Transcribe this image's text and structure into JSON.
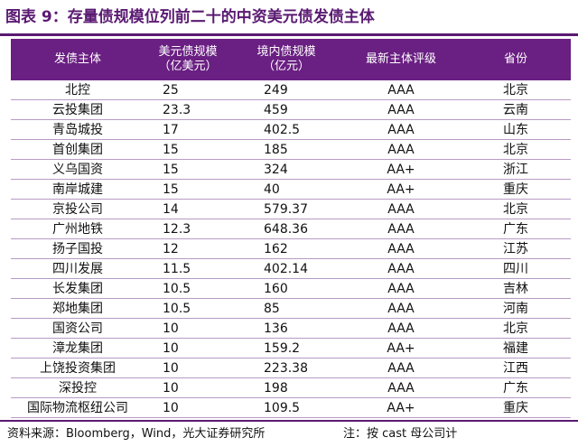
{
  "title": "图表 9：存量债规模位列前二十的中资美元债发债主体",
  "headers": {
    "issuer": "发债主体",
    "usd_line1": "美元债规模",
    "usd_line2": "（亿美元）",
    "dom_line1": "境内债规模",
    "dom_line2": "（亿元）",
    "rating": "最新主体评级",
    "province": "省份"
  },
  "rows": [
    {
      "issuer": "北控",
      "usd": "25",
      "dom": "249",
      "rating": "AAA",
      "province": "北京"
    },
    {
      "issuer": "云投集团",
      "usd": "23.3",
      "dom": "459",
      "rating": "AAA",
      "province": "云南"
    },
    {
      "issuer": "青岛城投",
      "usd": "17",
      "dom": "402.5",
      "rating": "AAA",
      "province": "山东"
    },
    {
      "issuer": "首创集团",
      "usd": "15",
      "dom": "185",
      "rating": "AAA",
      "province": "北京"
    },
    {
      "issuer": "义乌国资",
      "usd": "15",
      "dom": "324",
      "rating": "AA+",
      "province": "浙江"
    },
    {
      "issuer": "南岸城建",
      "usd": "15",
      "dom": "40",
      "rating": "AA+",
      "province": "重庆"
    },
    {
      "issuer": "京投公司",
      "usd": "14",
      "dom": "579.37",
      "rating": "AAA",
      "province": "北京"
    },
    {
      "issuer": "广州地铁",
      "usd": "12.3",
      "dom": "648.36",
      "rating": "AAA",
      "province": "广东"
    },
    {
      "issuer": "扬子国投",
      "usd": "12",
      "dom": "162",
      "rating": "AAA",
      "province": "江苏"
    },
    {
      "issuer": "四川发展",
      "usd": "11.5",
      "dom": "402.14",
      "rating": "AAA",
      "province": "四川"
    },
    {
      "issuer": "长发集团",
      "usd": "10.5",
      "dom": "160",
      "rating": "AAA",
      "province": "吉林"
    },
    {
      "issuer": "郑地集团",
      "usd": "10.5",
      "dom": "85",
      "rating": "AAA",
      "province": "河南"
    },
    {
      "issuer": "国资公司",
      "usd": "10",
      "dom": "136",
      "rating": "AAA",
      "province": "北京"
    },
    {
      "issuer": "漳龙集团",
      "usd": "10",
      "dom": "159.2",
      "rating": "AA+",
      "province": "福建"
    },
    {
      "issuer": "上饶投资集团",
      "usd": "10",
      "dom": "223.38",
      "rating": "AAA",
      "province": "江西"
    },
    {
      "issuer": "深投控",
      "usd": "10",
      "dom": "198",
      "rating": "AAA",
      "province": "广东"
    },
    {
      "issuer": "国际物流枢纽公司",
      "usd": "10",
      "dom": "109.5",
      "rating": "AA+",
      "province": "重庆"
    }
  ],
  "footer": {
    "source": "资料来源：Bloomberg，Wind，光大证券研究所",
    "note": "注：按 cast 母公司计"
  },
  "colors": {
    "accent": "#6a1f82",
    "rule": "#b89ac4"
  }
}
